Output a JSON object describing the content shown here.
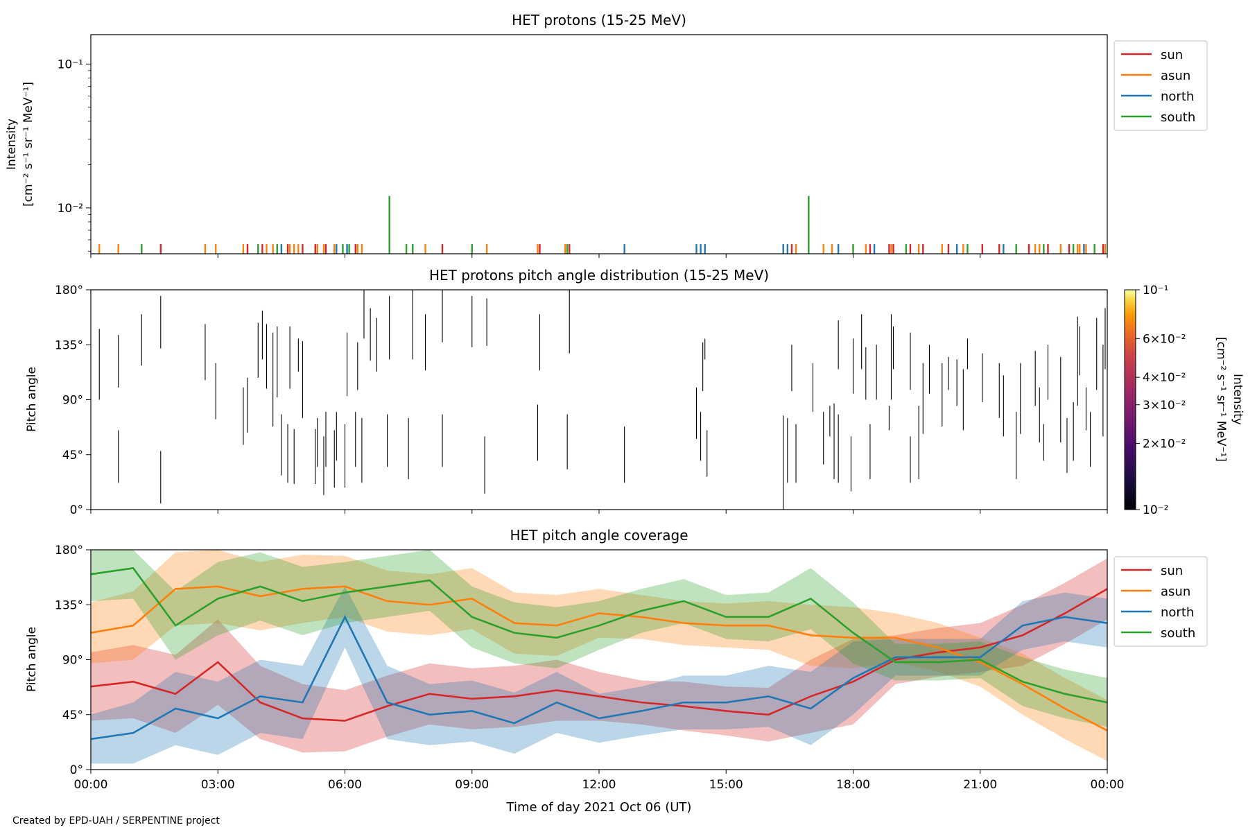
{
  "footer": {
    "credit": "Created by EPD-UAH / SERPENTINE project"
  },
  "shared_x": {
    "label": "Time of day 2021 Oct 06 (UT)",
    "range_hours": [
      0,
      24
    ],
    "tick_hours": [
      0,
      3,
      6,
      9,
      12,
      15,
      18,
      21,
      24
    ],
    "tick_labels": [
      "00:00",
      "03:00",
      "06:00",
      "09:00",
      "12:00",
      "15:00",
      "18:00",
      "21:00",
      "00:00"
    ]
  },
  "colors": {
    "sun": "#d62728",
    "asun": "#ff7f0e",
    "north": "#1f77b4",
    "south": "#2ca02c"
  },
  "chart_data": [
    {
      "type": "bar",
      "title": "HET protons (15-25 MeV)",
      "ylabel_lines": [
        "Intensity",
        "[cm⁻² s⁻¹ sr⁻¹ MeV⁻¹]"
      ],
      "yscale": "log",
      "ylim": [
        0.0048,
        0.16
      ],
      "ytick_values": [
        0.01,
        0.1
      ],
      "ytick_labels": [
        "10⁻²",
        "10⁻¹"
      ],
      "legend": {
        "placement": "outside-right-top",
        "entries": [
          "sun",
          "asun",
          "north",
          "south"
        ]
      },
      "series": [
        {
          "name": "sun",
          "color": "#d62728",
          "x_hours": [
            1.65,
            3.7,
            4.05,
            4.65,
            5.0,
            5.3,
            5.55,
            6.25,
            8.3,
            10.6,
            11.3,
            16.55,
            18.4,
            18.85,
            18.95,
            19.35,
            19.65,
            20.25,
            21.05,
            21.45,
            22.15,
            22.6,
            23.1,
            23.9
          ],
          "values": [
            0.0056,
            0.0056,
            0.0056,
            0.0056,
            0.0056,
            0.0056,
            0.0056,
            0.0056,
            0.0056,
            0.0056,
            0.0056,
            0.0056,
            0.0056,
            0.0056,
            0.0056,
            0.0056,
            0.0056,
            0.0056,
            0.0056,
            0.0056,
            0.0056,
            0.0056,
            0.0056,
            0.0056
          ]
        },
        {
          "name": "asun",
          "color": "#ff7f0e",
          "x_hours": [
            0.2,
            0.65,
            2.7,
            2.95,
            3.6,
            4.15,
            4.3,
            4.7,
            4.8,
            4.9,
            5.35,
            5.5,
            5.75,
            6.3,
            6.4,
            7.9,
            9.35,
            10.55,
            11.2,
            16.65,
            17.3,
            17.5,
            18.3,
            18.9,
            19.55,
            20.1,
            20.6,
            22.3,
            22.4,
            22.9,
            23.3,
            23.35,
            23.5,
            23.95
          ],
          "values": [
            0.0056,
            0.0056,
            0.0056,
            0.0056,
            0.0056,
            0.0056,
            0.0056,
            0.0056,
            0.0056,
            0.0056,
            0.0056,
            0.0056,
            0.0056,
            0.0056,
            0.0056,
            0.0056,
            0.0056,
            0.0056,
            0.0056,
            0.0056,
            0.0056,
            0.0056,
            0.0056,
            0.0056,
            0.0056,
            0.0056,
            0.0056,
            0.0056,
            0.0056,
            0.0056,
            0.0056,
            0.0056,
            0.0056,
            0.0056
          ]
        },
        {
          "name": "north",
          "color": "#1f77b4",
          "x_hours": [
            4.5,
            5.8,
            6.05,
            12.6,
            14.3,
            14.4,
            14.5,
            16.35,
            16.45,
            17.65,
            18.5,
            20.45,
            21.55,
            23.45
          ],
          "values": [
            0.0056,
            0.0056,
            0.0056,
            0.0056,
            0.0056,
            0.0056,
            0.0056,
            0.0056,
            0.0056,
            0.0056,
            0.0056,
            0.0056,
            0.0056,
            0.0056
          ]
        },
        {
          "name": "south",
          "color": "#2ca02c",
          "x_hours": [
            1.2,
            3.95,
            4.4,
            5.95,
            6.1,
            7.05,
            7.45,
            7.6,
            9.0,
            11.25,
            16.95,
            18.0,
            19.25,
            20.7,
            21.85,
            22.5,
            23.2,
            23.7
          ],
          "values": [
            0.0056,
            0.0056,
            0.0056,
            0.0056,
            0.0056,
            0.0121,
            0.0056,
            0.0056,
            0.0056,
            0.0056,
            0.0121,
            0.0056,
            0.0056,
            0.0056,
            0.0056,
            0.0056,
            0.0056,
            0.0056
          ]
        }
      ]
    },
    {
      "type": "heatmap",
      "title": "HET protons pitch angle distribution (15-25 MeV)",
      "ylabel": "Pitch angle",
      "ylim": [
        0,
        180
      ],
      "ytick_values": [
        0,
        45,
        90,
        135,
        180
      ],
      "ytick_labels": [
        "0°",
        "45°",
        "90°",
        "135°",
        "180°"
      ],
      "colorbar": {
        "label_lines": [
          "Intensity",
          "[cm⁻² s⁻¹ sr⁻¹ MeV⁻¹]"
        ],
        "scale": "log",
        "range": [
          0.01,
          0.1
        ],
        "tick_values": [
          0.01,
          0.02,
          0.03,
          0.04,
          0.06,
          0.1
        ],
        "tick_labels": [
          "10⁻²",
          "2×10⁻²",
          "3×10⁻²",
          "4×10⁻²",
          "6×10⁻²",
          "10⁻¹"
        ],
        "colormap": "inferno"
      },
      "segments_hours_pitch": [
        [
          0.2,
          90,
          148
        ],
        [
          0.65,
          22,
          65
        ],
        [
          0.65,
          100,
          143
        ],
        [
          1.2,
          118,
          160
        ],
        [
          1.65,
          5,
          48
        ],
        [
          1.65,
          132,
          175
        ],
        [
          2.7,
          106,
          152
        ],
        [
          2.95,
          74,
          120
        ],
        [
          3.6,
          53,
          100
        ],
        [
          3.7,
          63,
          108
        ],
        [
          3.95,
          108,
          153
        ],
        [
          4.05,
          123,
          163
        ],
        [
          4.15,
          99,
          152
        ],
        [
          4.3,
          68,
          145
        ],
        [
          4.4,
          92,
          150
        ],
        [
          4.5,
          28,
          78
        ],
        [
          4.65,
          22,
          70
        ],
        [
          4.7,
          99,
          150
        ],
        [
          4.8,
          21,
          66
        ],
        [
          4.9,
          113,
          140
        ],
        [
          5.0,
          75,
          138
        ],
        [
          5.3,
          21,
          66
        ],
        [
          5.35,
          35,
          75
        ],
        [
          5.5,
          12,
          60
        ],
        [
          5.55,
          35,
          80
        ],
        [
          5.75,
          18,
          65
        ],
        [
          5.8,
          40,
          80
        ],
        [
          6.0,
          18,
          70
        ],
        [
          6.05,
          93,
          145
        ],
        [
          6.25,
          35,
          80
        ],
        [
          6.3,
          98,
          137
        ],
        [
          6.4,
          22,
          75
        ],
        [
          6.45,
          140,
          180
        ],
        [
          6.6,
          122,
          165
        ],
        [
          6.75,
          113,
          157
        ],
        [
          7.0,
          35,
          78
        ],
        [
          7.05,
          123,
          175
        ],
        [
          7.5,
          25,
          75
        ],
        [
          7.6,
          123,
          180
        ],
        [
          7.9,
          114,
          160
        ],
        [
          8.3,
          137,
          180
        ],
        [
          8.3,
          35,
          78
        ],
        [
          9.0,
          133,
          175
        ],
        [
          9.3,
          13,
          60
        ],
        [
          9.35,
          134,
          173
        ],
        [
          10.55,
          40,
          86
        ],
        [
          10.6,
          114,
          160
        ],
        [
          11.25,
          33,
          78
        ],
        [
          11.3,
          128,
          180
        ],
        [
          12.6,
          22,
          68
        ],
        [
          14.3,
          58,
          100
        ],
        [
          14.4,
          40,
          80
        ],
        [
          14.45,
          97,
          137
        ],
        [
          14.55,
          27,
          65
        ],
        [
          14.5,
          123,
          140
        ],
        [
          16.35,
          0,
          77
        ],
        [
          16.45,
          22,
          75
        ],
        [
          16.55,
          97,
          135
        ],
        [
          16.65,
          22,
          70
        ],
        [
          17.05,
          80,
          120
        ],
        [
          17.3,
          37,
          80
        ],
        [
          17.45,
          60,
          85
        ],
        [
          17.55,
          25,
          87
        ],
        [
          17.65,
          22,
          78
        ],
        [
          17.65,
          115,
          155
        ],
        [
          17.95,
          15,
          60
        ],
        [
          18.0,
          95,
          140
        ],
        [
          18.2,
          115,
          160
        ],
        [
          18.3,
          90,
          133
        ],
        [
          18.4,
          25,
          70
        ],
        [
          18.55,
          90,
          135
        ],
        [
          18.85,
          65,
          85
        ],
        [
          18.9,
          90,
          160
        ],
        [
          18.95,
          115,
          150
        ],
        [
          19.35,
          22,
          60
        ],
        [
          19.35,
          98,
          145
        ],
        [
          19.55,
          25,
          85
        ],
        [
          19.65,
          62,
          120
        ],
        [
          19.8,
          95,
          135
        ],
        [
          20.1,
          68,
          120
        ],
        [
          20.25,
          98,
          125
        ],
        [
          20.45,
          85,
          123
        ],
        [
          20.6,
          65,
          115
        ],
        [
          20.7,
          115,
          140
        ],
        [
          21.05,
          88,
          128
        ],
        [
          21.45,
          75,
          120
        ],
        [
          21.55,
          60,
          110
        ],
        [
          21.85,
          25,
          80
        ],
        [
          21.95,
          62,
          120
        ],
        [
          22.3,
          85,
          130
        ],
        [
          22.4,
          55,
          100
        ],
        [
          22.5,
          40,
          70
        ],
        [
          22.6,
          90,
          135
        ],
        [
          22.9,
          55,
          125
        ],
        [
          23.05,
          30,
          75
        ],
        [
          23.2,
          40,
          88
        ],
        [
          23.3,
          85,
          158
        ],
        [
          23.35,
          110,
          150
        ],
        [
          23.5,
          65,
          100
        ],
        [
          23.6,
          35,
          80
        ],
        [
          23.75,
          98,
          157
        ],
        [
          23.9,
          60,
          135
        ],
        [
          23.95,
          115,
          165
        ]
      ]
    },
    {
      "type": "area",
      "title": "HET pitch angle coverage",
      "ylabel": "Pitch angle",
      "xlabel": "Time of day 2021 Oct 06 (UT)",
      "ylim": [
        0,
        180
      ],
      "ytick_values": [
        0,
        45,
        90,
        135,
        180
      ],
      "ytick_labels": [
        "0°",
        "45°",
        "90°",
        "135°",
        "180°"
      ],
      "legend": {
        "placement": "outside-right-top",
        "entries": [
          "sun",
          "asun",
          "north",
          "south"
        ]
      },
      "x_hours": [
        0,
        1,
        2,
        3,
        4,
        5,
        6,
        7,
        8,
        9,
        10,
        11,
        12,
        13,
        14,
        15,
        16,
        17,
        18,
        19,
        20,
        21,
        22,
        23,
        24
      ],
      "series": [
        {
          "name": "sun",
          "color": "#d62728",
          "values": [
            68,
            72,
            62,
            88,
            55,
            42,
            40,
            52,
            62,
            58,
            60,
            65,
            60,
            55,
            52,
            48,
            45,
            60,
            72,
            90,
            96,
            100,
            110,
            128,
            148
          ],
          "band_halfwidth": [
            28,
            30,
            32,
            35,
            30,
            28,
            25,
            25,
            25,
            25,
            25,
            25,
            20,
            18,
            20,
            20,
            22,
            30,
            35,
            20,
            20,
            20,
            25,
            25,
            25
          ]
        },
        {
          "name": "asun",
          "color": "#ff7f0e",
          "values": [
            112,
            118,
            148,
            150,
            142,
            148,
            150,
            138,
            135,
            140,
            120,
            118,
            128,
            125,
            120,
            118,
            118,
            110,
            108,
            108,
            100,
            88,
            70,
            50,
            32
          ],
          "band_halfwidth": [
            25,
            28,
            30,
            30,
            28,
            28,
            25,
            25,
            25,
            25,
            25,
            25,
            20,
            18,
            18,
            18,
            20,
            25,
            25,
            20,
            20,
            20,
            25,
            25,
            25
          ]
        },
        {
          "name": "north",
          "color": "#1f77b4",
          "values": [
            25,
            30,
            50,
            42,
            60,
            55,
            125,
            55,
            45,
            48,
            38,
            55,
            42,
            48,
            55,
            55,
            60,
            50,
            75,
            92,
            92,
            92,
            118,
            125,
            120
          ],
          "band_halfwidth": [
            20,
            25,
            30,
            30,
            30,
            30,
            25,
            30,
            25,
            25,
            25,
            25,
            20,
            20,
            22,
            22,
            25,
            30,
            30,
            15,
            15,
            15,
            20,
            20,
            20
          ]
        },
        {
          "name": "south",
          "color": "#2ca02c",
          "values": [
            160,
            165,
            118,
            140,
            150,
            138,
            145,
            150,
            155,
            125,
            112,
            108,
            118,
            130,
            138,
            125,
            125,
            140,
            112,
            88,
            88,
            90,
            72,
            62,
            55
          ],
          "band_halfwidth": [
            22,
            25,
            28,
            30,
            28,
            28,
            25,
            25,
            25,
            25,
            25,
            25,
            20,
            18,
            18,
            18,
            20,
            25,
            25,
            15,
            15,
            15,
            20,
            20,
            20
          ]
        }
      ]
    }
  ]
}
